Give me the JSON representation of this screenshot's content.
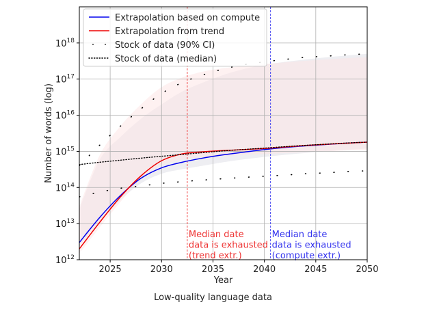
{
  "caption": "Low-quality language data",
  "chart_data": {
    "type": "line",
    "xlabel": "Year",
    "ylabel": "Number of words (log)",
    "xlim": [
      2022,
      2050
    ],
    "ylim": [
      1000000000000.0,
      1e+19
    ],
    "yscale": "log",
    "grid": true,
    "legend_position": "top-left",
    "x_ticks": [
      2025,
      2030,
      2035,
      2040,
      2045,
      2050
    ],
    "y_ticks": [
      {
        "value": 1000000000000.0,
        "base": "10",
        "exp": "12"
      },
      {
        "value": 10000000000000.0,
        "base": "10",
        "exp": "13"
      },
      {
        "value": 100000000000000.0,
        "base": "10",
        "exp": "14"
      },
      {
        "value": 1000000000000000.0,
        "base": "10",
        "exp": "15"
      },
      {
        "value": 1e+16,
        "base": "10",
        "exp": "16"
      },
      {
        "value": 1e+17,
        "base": "10",
        "exp": "17"
      },
      {
        "value": 1e+18,
        "base": "10",
        "exp": "18"
      }
    ],
    "series": [
      {
        "name": "Extrapolation based on compute",
        "color": "#0000ee",
        "style": "solid",
        "x": [
          2022,
          2024,
          2026,
          2028,
          2030,
          2032,
          2034,
          2036,
          2038,
          2040,
          2042,
          2044,
          2046,
          2048,
          2050
        ],
        "y": [
          3000000000000.0,
          15000000000000.0,
          60000000000000.0,
          180000000000000.0,
          350000000000000.0,
          500000000000000.0,
          650000000000000.0,
          800000000000000.0,
          950000000000000.0,
          1120000000000000.0,
          1280000000000000.0,
          1420000000000000.0,
          1550000000000000.0,
          1680000000000000.0,
          1800000000000000.0
        ]
      },
      {
        "name": "Extrapolation from trend",
        "color": "#ee0000",
        "style": "solid",
        "x": [
          2022,
          2024,
          2026,
          2028,
          2030,
          2032,
          2034,
          2036,
          2038,
          2040,
          2042,
          2044,
          2046,
          2048,
          2050
        ],
        "y": [
          2000000000000.0,
          11000000000000.0,
          55000000000000.0,
          210000000000000.0,
          550000000000000.0,
          850000000000000.0,
          970000000000000.0,
          1050000000000000.0,
          1120000000000000.0,
          1200000000000000.0,
          1320000000000000.0,
          1450000000000000.0,
          1570000000000000.0,
          1680000000000000.0,
          1800000000000000.0
        ]
      },
      {
        "name": "Stock of data (90% CI)",
        "color": "#000000",
        "style": "sparse-dots",
        "upper": {
          "x": [
            2022,
            2024,
            2026,
            2028,
            2030,
            2032,
            2034,
            2036,
            2038,
            2040,
            2042,
            2044,
            2046,
            2048,
            2050
          ],
          "y": [
            400000000000000.0,
            1500000000000000.0,
            5000000000000000.0,
            1.5e+16,
            4e+16,
            8e+16,
            1.3e+17,
            1.9e+17,
            2.5e+17,
            3e+17,
            3.5e+17,
            4e+17,
            4.3e+17,
            4.7e+17,
            5e+17
          ]
        },
        "lower": {
          "x": [
            2022,
            2024,
            2026,
            2028,
            2030,
            2032,
            2034,
            2036,
            2038,
            2040,
            2042,
            2044,
            2046,
            2048,
            2050
          ],
          "y": [
            55000000000000.0,
            75000000000000.0,
            95000000000000.0,
            110000000000000.0,
            130000000000000.0,
            145000000000000.0,
            160000000000000.0,
            175000000000000.0,
            190000000000000.0,
            205000000000000.0,
            220000000000000.0,
            240000000000000.0,
            255000000000000.0,
            275000000000000.0,
            290000000000000.0
          ]
        }
      },
      {
        "name": "Stock of data (median)",
        "color": "#000000",
        "style": "dotted",
        "x": [
          2022,
          2024,
          2026,
          2028,
          2030,
          2032,
          2034,
          2036,
          2038,
          2040,
          2042,
          2044,
          2046,
          2048,
          2050
        ],
        "y": [
          430000000000000.0,
          500000000000000.0,
          570000000000000.0,
          650000000000000.0,
          730000000000000.0,
          820000000000000.0,
          920000000000000.0,
          1030000000000000.0,
          1130000000000000.0,
          1230000000000000.0,
          1350000000000000.0,
          1470000000000000.0,
          1580000000000000.0,
          1700000000000000.0,
          1800000000000000.0
        ]
      }
    ],
    "bands": [
      {
        "color": "#e8e8ee",
        "opacity": 0.75,
        "x": [
          2022,
          2024,
          2026,
          2028,
          2030,
          2032,
          2034,
          2036,
          2038,
          2040,
          2042,
          2044,
          2046,
          2048,
          2050
        ],
        "upper": [
          25000000000000.0,
          600000000000000.0,
          2500000000000000.0,
          8000000000000000.0,
          2e+16,
          4.5e+16,
          8e+16,
          1.3e+17,
          1.9e+17,
          2.5e+17,
          3e+17,
          3.5e+17,
          4e+17,
          4.5e+17,
          5e+17
        ],
        "lower": [
          2500000000000.0,
          11000000000000.0,
          45000000000000.0,
          130000000000000.0,
          240000000000000.0,
          320000000000000.0,
          400000000000000.0,
          500000000000000.0,
          600000000000000.0,
          700000000000000.0,
          800000000000000.0,
          900000000000000.0,
          1000000000000000.0,
          1100000000000000.0,
          1200000000000000.0
        ]
      },
      {
        "color": "#fde3e3",
        "opacity": 0.5,
        "x": [
          2022,
          2024,
          2026,
          2028,
          2030,
          2032,
          2034,
          2036,
          2038,
          2040,
          2042,
          2044,
          2046,
          2048,
          2050
        ],
        "upper": [
          30000000000000.0,
          800000000000000.0,
          5000000000000000.0,
          2e+16,
          6e+16,
          1.1e+17,
          1.6e+17,
          2e+17,
          2.3e+17,
          2.6e+17,
          2.9e+17,
          3.2e+17,
          3.5e+17,
          3.8e+17,
          4e+17
        ],
        "lower": [
          1500000000000.0,
          8000000000000.0,
          40000000000000.0,
          170000000000000.0,
          400000000000000.0,
          600000000000000.0,
          700000000000000.0,
          750000000000000.0,
          800000000000000.0,
          850000000000000.0,
          900000000000000.0,
          950000000000000.0,
          1000000000000000.0,
          1050000000000000.0,
          1100000000000000.0
        ]
      }
    ],
    "vlines": [
      {
        "x": 2032.5,
        "color": "#ee3333",
        "label_lines": [
          "Median date",
          "data is exhausted",
          "(trend extr.)"
        ]
      },
      {
        "x": 2040.6,
        "color": "#3333ee",
        "label_lines": [
          "Median date",
          "data is exhausted",
          "(compute extr.)"
        ]
      }
    ]
  }
}
